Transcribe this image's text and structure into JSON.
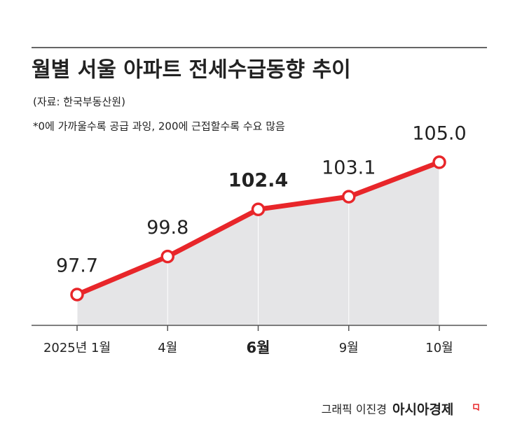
{
  "chart_data": {
    "type": "line",
    "title": "월별 서울 아파트 전세수급동향 추이",
    "source": "(자료: 한국부동산원)",
    "note": "*0에 가까울수록 공급 과잉, 200에 근접할수록 수요 많음",
    "credit": "그래픽 이진경",
    "publisher": "아시아경제",
    "categories": [
      "2025년 1월",
      "4월",
      "6월",
      "9월",
      "10월"
    ],
    "series": [
      {
        "color": "#e8262a",
        "values": [
          97.7,
          99.8,
          102.4,
          103.1,
          105.0
        ],
        "value_labels": [
          "97.7",
          "99.8",
          "102.4",
          "103.1",
          "105.0"
        ]
      }
    ],
    "area_color": "#e5e5e7",
    "highlight_index": 2,
    "ylim": [
      96,
      106
    ]
  }
}
